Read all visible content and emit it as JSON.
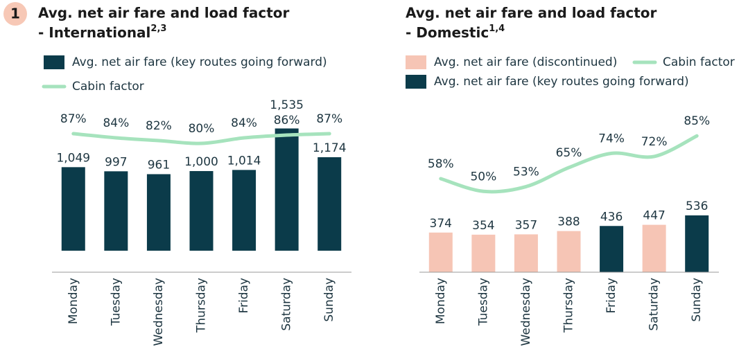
{
  "chart_data": [
    {
      "type": "bar",
      "badge": "1",
      "title": "Avg. net air fare and load factor",
      "subtitle": "- International",
      "title_note": "2,3",
      "categories": [
        "Monday",
        "Tuesday",
        "Wednesday",
        "Thursday",
        "Friday",
        "Saturday",
        "Sunday"
      ],
      "ylim": [
        -270,
        1800
      ],
      "y2lim": [
        -13,
        106
      ],
      "series": [
        {
          "name": "Avg. net air fare (key routes going forward)",
          "color": "#0b3b4a",
          "values": [
            1049,
            997,
            961,
            1000,
            1014,
            1535,
            1174
          ],
          "value_labels": [
            "1,049",
            "997",
            "961",
            "1,000",
            "1,014",
            "1,535",
            "1,174"
          ]
        },
        {
          "name": "Cabin factor",
          "type": "line",
          "axis": "y2",
          "color": "#a6e3bd",
          "values": [
            87,
            84,
            82,
            80,
            84,
            86,
            87
          ],
          "value_labels": [
            "87%",
            "84%",
            "82%",
            "80%",
            "84%",
            "86%",
            "87%"
          ]
        }
      ]
    },
    {
      "type": "bar",
      "title": "Avg. net air fare and load factor",
      "subtitle": "- Domestic",
      "title_note": "1,4",
      "categories": [
        "Monday",
        "Tuesday",
        "Wednesday",
        "Thursday",
        "Friday",
        "Saturday",
        "Sunday"
      ],
      "ylim": [
        0,
        1555
      ],
      "y2lim": [
        -1,
        103
      ],
      "series": [
        {
          "name": "Avg. net air fare (discontinued)",
          "color": "#f6c5b5",
          "values": [
            374,
            354,
            357,
            388,
            null,
            447,
            null
          ]
        },
        {
          "name": "Cabin factor",
          "type": "line",
          "axis": "y2",
          "color": "#a6e3bd",
          "values": [
            58,
            50,
            53,
            65,
            74,
            72,
            85
          ],
          "value_labels": [
            "58%",
            "50%",
            "53%",
            "65%",
            "74%",
            "72%",
            "85%"
          ]
        },
        {
          "name": "Avg. net air fare (key routes going forward)",
          "color": "#0b3b4a",
          "values": [
            null,
            null,
            null,
            null,
            436,
            null,
            536
          ]
        }
      ]
    }
  ]
}
